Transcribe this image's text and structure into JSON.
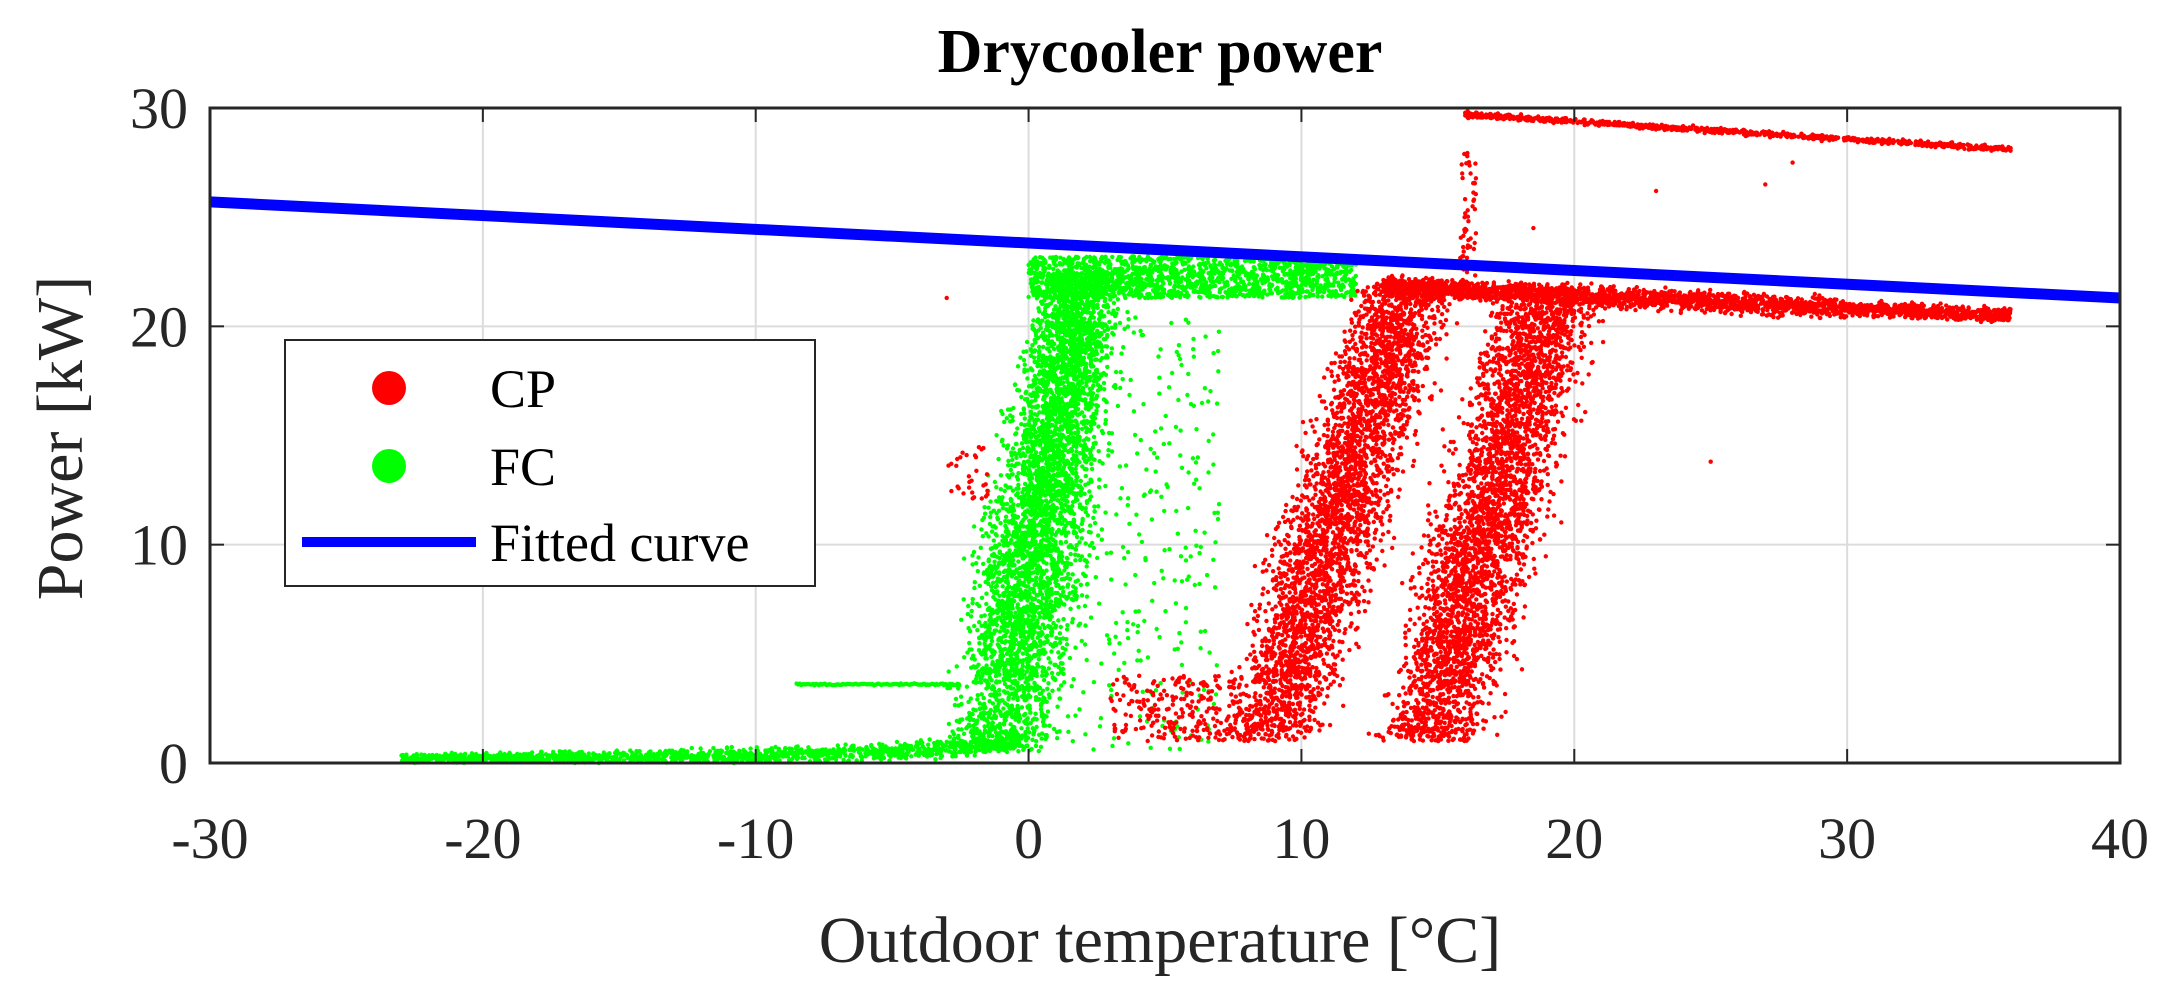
{
  "chart_data": {
    "type": "scatter",
    "title": "Drycooler power",
    "xlabel": "Outdoor temperature [°C]",
    "ylabel": "Power [kW]",
    "xlim": [
      -30,
      40
    ],
    "ylim": [
      0,
      30
    ],
    "grid": true,
    "legend_position": "left-middle",
    "x_ticks": [
      -30,
      -20,
      -10,
      0,
      10,
      20,
      30,
      40
    ],
    "y_ticks": [
      0,
      10,
      20,
      30
    ],
    "x_tick_labels": [
      "-30",
      "-20",
      "-10",
      "0",
      "10",
      "20",
      "30",
      "40"
    ],
    "y_tick_labels": [
      "0",
      "10",
      "20",
      "30"
    ],
    "series": [
      {
        "name": "CP",
        "kind": "scatter",
        "color": "#ff0000",
        "clusters": [
          {
            "desc": "main band A",
            "x_range": [
              7,
              17
            ],
            "y_range": [
              1,
              22
            ]
          },
          {
            "desc": "main band B",
            "x_range": [
              12,
              22
            ],
            "y_range": [
              1,
              21
            ]
          },
          {
            "desc": "steady band",
            "x_range": [
              13,
              36
            ],
            "y_center_start": 21.8,
            "y_center_end": 20.5
          },
          {
            "desc": "high band",
            "x_range": [
              16,
              36
            ],
            "y_center_start": 29.7,
            "y_center_end": 28.1
          }
        ],
        "sample_points": [
          [
            -3,
            21.3
          ],
          [
            -2.5,
            14
          ],
          [
            25,
            13.8
          ],
          [
            27,
            26.5
          ],
          [
            28,
            27.5
          ],
          [
            18.5,
            24.5
          ],
          [
            16.2,
            27
          ],
          [
            23,
            26.2
          ]
        ]
      },
      {
        "name": "FC",
        "kind": "scatter",
        "color": "#00ff00",
        "clusters": [
          {
            "desc": "low tail",
            "x_range": [
              -23,
              0
            ],
            "y_start": 0.2,
            "y_end": 1.0
          },
          {
            "desc": "vertical band",
            "x_range": [
              -2.5,
              6
            ],
            "y_range": [
              0.5,
              22.5
            ]
          },
          {
            "desc": "top band",
            "x_range": [
              0,
              12
            ],
            "y_range": [
              21.2,
              23.2
            ]
          }
        ],
        "horizontal_line": {
          "x_start": -8.5,
          "x_end": -2.5,
          "y": 3.6
        }
      },
      {
        "name": "Fitted curve",
        "kind": "line",
        "color": "#0000ff",
        "x": [
          -30,
          40
        ],
        "y": [
          25.7,
          21.3
        ]
      }
    ],
    "legend": [
      {
        "label": "CP",
        "color": "#ff0000",
        "marker": "dot"
      },
      {
        "label": "FC",
        "color": "#00ff00",
        "marker": "dot"
      },
      {
        "label": "Fitted curve",
        "color": "#0000ff",
        "marker": "line"
      }
    ]
  }
}
